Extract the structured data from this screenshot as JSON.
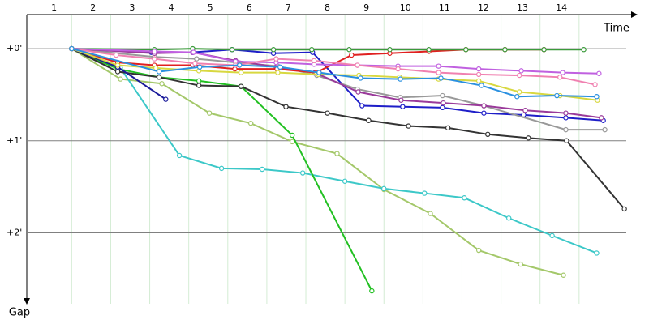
{
  "chart_data": {
    "type": "line",
    "x_label": "Time",
    "y_label": "Gap",
    "laps": [
      "1",
      "2",
      "3",
      "4",
      "5",
      "6",
      "7",
      "8",
      "9",
      "10",
      "11",
      "12",
      "13",
      "14"
    ],
    "xlim": [
      -0.15,
      15.5
    ],
    "xticks": [
      1,
      2,
      3,
      4,
      5,
      6,
      7,
      8,
      9,
      10,
      11,
      12,
      13,
      14
    ],
    "ylim": [
      -0.37,
      2.77
    ],
    "yticks": [
      {
        "value": 0,
        "label": "+0'"
      },
      {
        "value": 1,
        "label": "+1'"
      },
      {
        "value": 2,
        "label": "+2'"
      }
    ],
    "y_inverted": true,
    "grid": true,
    "series": [
      {
        "color": "#a4c86a",
        "x": [
          1,
          2.25,
          3.31,
          4.53,
          5.59,
          6.65,
          7.8,
          9.0,
          10.19,
          11.43,
          12.5,
          13.6
        ],
        "values": [
          0,
          0.33,
          0.38,
          0.7,
          0.81,
          1.01,
          1.14,
          1.53,
          1.79,
          2.19,
          2.34,
          2.46
        ]
      },
      {
        "color": "#3cc8c8",
        "x": [
          1,
          2.25,
          3.76,
          4.84,
          5.88,
          6.92,
          8.0,
          9.0,
          10.04,
          11.06,
          12.2,
          13.31,
          14.45
        ],
        "values": [
          0,
          0.21,
          1.16,
          1.3,
          1.31,
          1.35,
          1.44,
          1.52,
          1.57,
          1.62,
          1.84,
          2.03,
          2.22
        ]
      },
      {
        "color": "#22c022",
        "x": [
          1,
          2.18,
          3.24,
          4.26,
          5.34,
          6.65,
          8.69
        ],
        "values": [
          0,
          0.22,
          0.31,
          0.35,
          0.41,
          0.94,
          2.63
        ]
      },
      {
        "color": "#333333",
        "x": [
          1,
          2.18,
          3.24,
          4.26,
          5.34,
          6.49,
          7.55,
          8.61,
          9.63,
          10.64,
          11.66,
          12.7,
          13.68,
          15.16
        ],
        "values": [
          0,
          0.25,
          0.31,
          0.4,
          0.41,
          0.63,
          0.7,
          0.78,
          0.84,
          0.86,
          0.93,
          0.97,
          1.0,
          1.74
        ]
      },
      {
        "color": "#1a1a9a",
        "x": [
          1,
          2.18,
          3.41
        ],
        "values": [
          0,
          0.2,
          0.55
        ]
      },
      {
        "color": "#1e1ec8",
        "x": [
          1,
          3.04,
          4.1,
          5.11,
          6.17,
          7.17,
          8.44,
          9.48,
          10.5,
          11.56,
          12.58,
          13.66,
          14.62
        ],
        "values": [
          0,
          0.04,
          0.04,
          0.01,
          0.05,
          0.04,
          0.62,
          0.63,
          0.64,
          0.7,
          0.72,
          0.75,
          0.78
        ]
      },
      {
        "color": "#999999",
        "x": [
          1,
          3.12,
          4.2,
          5.2,
          6.28,
          7.28,
          8.32,
          9.42,
          10.5,
          11.56,
          13.66,
          14.66
        ],
        "values": [
          0,
          0.09,
          0.11,
          0.15,
          0.19,
          0.29,
          0.44,
          0.53,
          0.51,
          0.62,
          0.88,
          0.88
        ]
      },
      {
        "color": "#9a3a9a",
        "x": [
          1,
          3.12,
          4.1,
          5.2,
          6.24,
          7.23,
          8.34,
          9.44,
          10.52,
          11.56,
          12.62,
          13.66,
          14.57
        ],
        "values": [
          0,
          0.05,
          0.04,
          0.13,
          0.2,
          0.26,
          0.47,
          0.56,
          0.59,
          0.62,
          0.67,
          0.7,
          0.75
        ]
      },
      {
        "color": "#e02020",
        "x": [
          1,
          2.18,
          3.12,
          4.1,
          5.18,
          6.26,
          7.26,
          8.17,
          9.15,
          10.15,
          11.1,
          12.1,
          13.1
        ],
        "values": [
          0,
          0.15,
          0.18,
          0.18,
          0.22,
          0.22,
          0.26,
          0.07,
          0.05,
          0.03,
          0.01,
          0.01,
          0.01
        ]
      },
      {
        "color": "#3a9a3a",
        "x": [
          1,
          3.12,
          4.1,
          5.11,
          6.17,
          7.15,
          8.11,
          9.15,
          10.15,
          11.1,
          12.1,
          13.1,
          14.12
        ],
        "values": [
          0,
          0.01,
          0,
          0.01,
          0.01,
          0.01,
          0.01,
          0.01,
          0.01,
          0.01,
          0.01,
          0.01,
          0.01
        ]
      },
      {
        "color": "#c060e0",
        "x": [
          1,
          3.12,
          4.12,
          5.2,
          6.24,
          7.21,
          8.32,
          9.36,
          10.4,
          11.43,
          12.52,
          13.58,
          14.51
        ],
        "values": [
          0,
          0.03,
          0.04,
          0.14,
          0.15,
          0.17,
          0.18,
          0.19,
          0.19,
          0.22,
          0.24,
          0.26,
          0.27
        ]
      },
      {
        "color": "#f080b0",
        "x": [
          1,
          2.14,
          3.12,
          4.16,
          5.2,
          6.24,
          7.21,
          8.32,
          9.36,
          10.4,
          11.43,
          12.47,
          13.51,
          14.41
        ],
        "values": [
          0,
          0.07,
          0.11,
          0.16,
          0.18,
          0.11,
          0.13,
          0.18,
          0.22,
          0.26,
          0.28,
          0.29,
          0.31,
          0.39
        ]
      },
      {
        "color": "#d8d840",
        "x": [
          1,
          2.18,
          3.16,
          4.26,
          5.34,
          6.28,
          7.32,
          8.36,
          9.4,
          10.4,
          11.43,
          12.47,
          13.51,
          14.47
        ],
        "values": [
          0,
          0.18,
          0.21,
          0.24,
          0.26,
          0.26,
          0.28,
          0.29,
          0.31,
          0.33,
          0.35,
          0.47,
          0.51,
          0.56
        ]
      },
      {
        "color": "#2a90e0",
        "x": [
          1,
          3.24,
          4.28,
          5.3,
          6.34,
          7.34,
          8.4,
          9.42,
          10.46,
          11.5,
          12.41,
          13.43,
          14.45
        ],
        "values": [
          0,
          0.25,
          0.2,
          0.18,
          0.2,
          0.26,
          0.32,
          0.33,
          0.32,
          0.4,
          0.52,
          0.51,
          0.52
        ]
      }
    ]
  }
}
